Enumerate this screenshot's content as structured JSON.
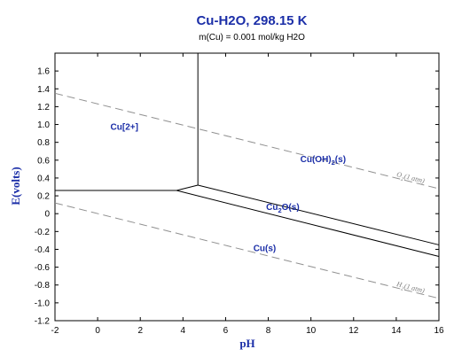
{
  "chart_data": {
    "type": "line",
    "title": "Cu-H2O, 298.15 K",
    "subtitle": "m(Cu) = 0.001 mol/kg H2O",
    "xlabel": "pH",
    "ylabel": "E(volts)",
    "xlim": [
      -2,
      16
    ],
    "ylim": [
      -1.2,
      1.8
    ],
    "xticks": [
      "-2",
      "0",
      "2",
      "4",
      "6",
      "8",
      "10",
      "12",
      "14",
      "16"
    ],
    "yticks": [
      "-1.2",
      "-1.0",
      "-0.8",
      "-0.6",
      "-0.4",
      "-0.2",
      "0",
      "0.2",
      "0.4",
      "0.6",
      "0.8",
      "1.0",
      "1.2",
      "1.4",
      "1.6"
    ],
    "grid": false,
    "boundaries": [
      {
        "style": "solid",
        "points": [
          [
            -2,
            0.26
          ],
          [
            3.7,
            0.26
          ]
        ]
      },
      {
        "style": "solid",
        "points": [
          [
            3.7,
            0.26
          ],
          [
            4.7,
            0.32
          ]
        ]
      },
      {
        "style": "solid",
        "points": [
          [
            4.7,
            0.32
          ],
          [
            4.7,
            1.8
          ]
        ]
      },
      {
        "style": "solid",
        "points": [
          [
            4.7,
            0.32
          ],
          [
            16,
            -0.35
          ]
        ]
      },
      {
        "style": "solid",
        "points": [
          [
            3.7,
            0.26
          ],
          [
            16,
            -0.48
          ]
        ]
      },
      {
        "style": "dashed",
        "label": "O2(1 atm)",
        "points": [
          [
            -2,
            1.35
          ],
          [
            16,
            0.28
          ]
        ]
      },
      {
        "style": "dashed",
        "label": "H2(1 atm)",
        "points": [
          [
            -2,
            0.12
          ],
          [
            16,
            -0.95
          ]
        ]
      }
    ],
    "regions": [
      {
        "label": "Cu[2+]",
        "x": 0.6,
        "y": 0.94
      },
      {
        "label": "Cu(OH)2(s)",
        "x": 9.5,
        "y": 0.58
      },
      {
        "label": "Cu2O(s)",
        "x": 7.9,
        "y": 0.04
      },
      {
        "label": "Cu(s)",
        "x": 7.3,
        "y": -0.42
      }
    ],
    "water_labels": [
      "O2(1 atm)",
      "H2(1 atm)"
    ]
  },
  "colors": {
    "title": "#1c2fa8",
    "boundary": "#000000",
    "water_line": "#909090"
  }
}
